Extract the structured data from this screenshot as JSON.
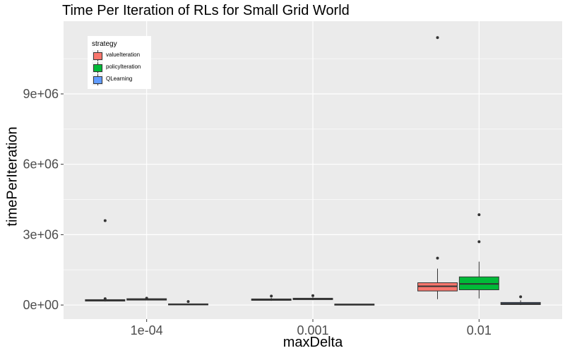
{
  "chart_data": {
    "type": "boxplot",
    "title": "Time Per Iteration of RLs for Small Grid World",
    "xlabel": "maxDelta",
    "ylabel": "timePerIteration",
    "categories": [
      "1e-04",
      "0.001",
      "0.01"
    ],
    "y_ticks": [
      0,
      3000000,
      6000000,
      9000000
    ],
    "y_tick_labels": [
      "0e+00",
      "3e+06",
      "6e+06",
      "9e+06"
    ],
    "ylim": [
      -600000,
      12100000
    ],
    "grid": true,
    "legend": {
      "title": "strategy",
      "position": "top-left"
    },
    "series": [
      {
        "name": "valueIteration",
        "color": "#F8766D",
        "boxes": [
          {
            "q1": 170000,
            "median": 200000,
            "q3": 230000,
            "whisker_low": 150000,
            "whisker_high": 260000,
            "outliers": [
              270000,
              3600000
            ]
          },
          {
            "q1": 200000,
            "median": 230000,
            "q3": 260000,
            "whisker_low": 180000,
            "whisker_high": 300000,
            "outliers": [
              380000
            ]
          },
          {
            "q1": 600000,
            "median": 800000,
            "q3": 950000,
            "whisker_low": 250000,
            "whisker_high": 1550000,
            "outliers": [
              2000000,
              11400000
            ]
          }
        ]
      },
      {
        "name": "policyIteration",
        "color": "#00BA38",
        "boxes": [
          {
            "q1": 210000,
            "median": 240000,
            "q3": 270000,
            "whisker_low": 200000,
            "whisker_high": 280000,
            "outliers": [
              290000
            ]
          },
          {
            "q1": 230000,
            "median": 260000,
            "q3": 290000,
            "whisker_low": 210000,
            "whisker_high": 330000,
            "outliers": [
              400000
            ]
          },
          {
            "q1": 650000,
            "median": 900000,
            "q3": 1200000,
            "whisker_low": 280000,
            "whisker_high": 1850000,
            "outliers": [
              2700000,
              3850000
            ]
          }
        ]
      },
      {
        "name": "QLearning",
        "color": "#619CFF",
        "boxes": [
          {
            "q1": 10000,
            "median": 30000,
            "q3": 50000,
            "whisker_low": 0,
            "whisker_high": 60000,
            "outliers": [
              150000
            ]
          },
          {
            "q1": 10000,
            "median": 25000,
            "q3": 40000,
            "whisker_low": 0,
            "whisker_high": 50000,
            "outliers": []
          },
          {
            "q1": 20000,
            "median": 60000,
            "q3": 110000,
            "whisker_low": 0,
            "whisker_high": 200000,
            "outliers": [
              350000
            ]
          }
        ]
      }
    ]
  }
}
